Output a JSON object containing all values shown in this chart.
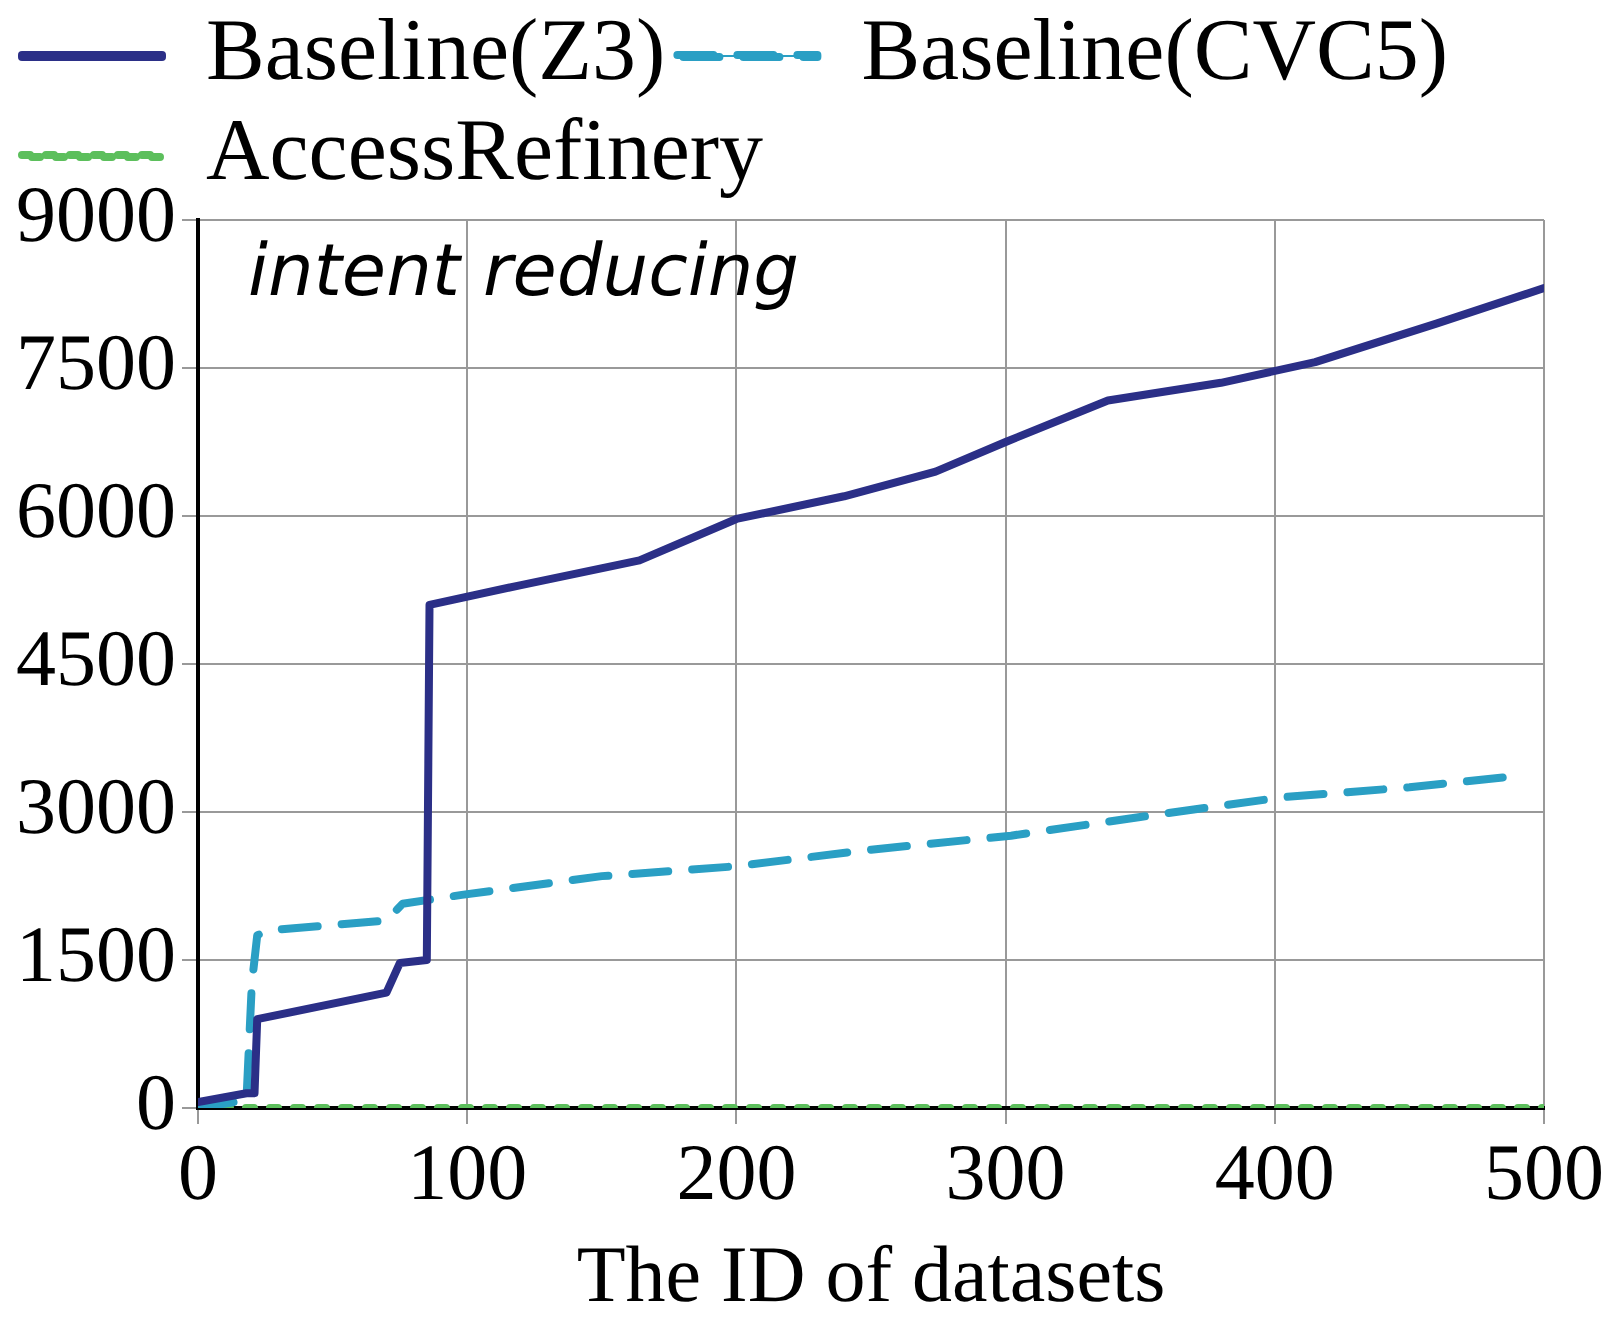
{
  "chart_data": {
    "type": "line",
    "xlabel": "The ID of datasets",
    "annotations": [
      "intent reducing"
    ],
    "xlim": [
      0,
      500
    ],
    "xticks": [
      0,
      100,
      200,
      300,
      400,
      500
    ],
    "ylim": [
      0,
      9000
    ],
    "yticks": [
      0,
      1500,
      3000,
      4500,
      6000,
      7500,
      9000
    ],
    "grid": true,
    "legend": "top",
    "marker": "none",
    "series": [
      {
        "name": "Baseline(Z3)",
        "color": "#2b2f87",
        "line_style": "solid",
        "x": [
          0,
          18,
          21,
          22,
          70,
          75,
          85,
          86,
          120,
          164,
          200,
          240,
          274,
          300,
          338,
          380,
          415,
          460,
          500
        ],
        "values": [
          60,
          150,
          150,
          900,
          1170,
          1470,
          1500,
          5100,
          5300,
          5550,
          5970,
          6200,
          6450,
          6750,
          7170,
          7350,
          7560,
          7950,
          8310
        ]
      },
      {
        "name": "Baseline(CVC5)",
        "color": "#2a9fc4",
        "line_style": "dashed",
        "x": [
          0,
          18,
          20,
          22,
          26,
          70,
          76,
          98,
          150,
          200,
          247,
          302,
          350,
          403,
          450,
          488
        ],
        "values": [
          0,
          80,
          1260,
          1750,
          1800,
          1900,
          2070,
          2160,
          2350,
          2450,
          2610,
          2760,
          2950,
          3150,
          3250,
          3360
        ]
      },
      {
        "name": "AccessRefinery",
        "color": "#5cbf5c",
        "line_style": "dotted",
        "x": [
          0,
          100,
          200,
          300,
          400,
          500
        ],
        "values": [
          0,
          0,
          0,
          0,
          0,
          0
        ]
      }
    ]
  }
}
